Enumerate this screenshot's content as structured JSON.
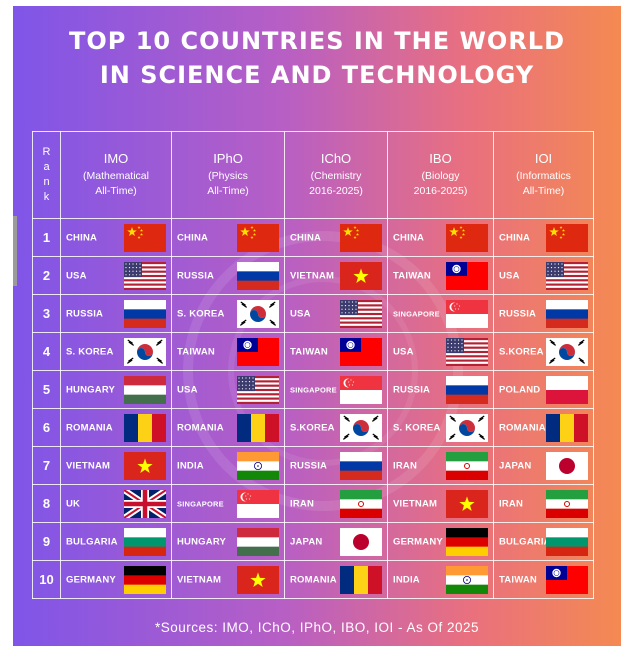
{
  "title_lines": [
    "TOP 10 COUNTRIES IN THE WORLD",
    "IN SCIENCE AND TECHNOLOGY"
  ],
  "rank_header": [
    "R",
    "a",
    "n",
    "k"
  ],
  "columns": [
    {
      "name": "IMO",
      "sub": [
        "(Mathematical",
        "All-Time)"
      ]
    },
    {
      "name": "IPhO",
      "sub": [
        "(Physics",
        "All-Time)"
      ]
    },
    {
      "name": "IChO",
      "sub": [
        "(Chemistry",
        "2016-2025)"
      ]
    },
    {
      "name": "IBO",
      "sub": [
        "(Biology",
        "2016-2025)"
      ]
    },
    {
      "name": "IOI",
      "sub": [
        "(Informatics",
        "All-Time)"
      ]
    }
  ],
  "rows": [
    {
      "rank": "1",
      "cells": [
        {
          "name": "CHINA",
          "flag": "china"
        },
        {
          "name": "CHINA",
          "flag": "china"
        },
        {
          "name": "CHINA",
          "flag": "china"
        },
        {
          "name": "CHINA",
          "flag": "china"
        },
        {
          "name": "CHINA",
          "flag": "china"
        }
      ]
    },
    {
      "rank": "2",
      "cells": [
        {
          "name": "USA",
          "flag": "usa"
        },
        {
          "name": "RUSSIA",
          "flag": "russia"
        },
        {
          "name": "VIETNAM",
          "flag": "vietnam"
        },
        {
          "name": "TAIWAN",
          "flag": "taiwan"
        },
        {
          "name": "USA",
          "flag": "usa"
        }
      ]
    },
    {
      "rank": "3",
      "cells": [
        {
          "name": "RUSSIA",
          "flag": "russia"
        },
        {
          "name": "S. KOREA",
          "flag": "korea"
        },
        {
          "name": "USA",
          "flag": "usa"
        },
        {
          "name": "SINGAPORE",
          "flag": "singapore"
        },
        {
          "name": "RUSSIA",
          "flag": "russia"
        }
      ]
    },
    {
      "rank": "4",
      "cells": [
        {
          "name": "S. KOREA",
          "flag": "korea"
        },
        {
          "name": "TAIWAN",
          "flag": "taiwan"
        },
        {
          "name": "TAIWAN",
          "flag": "taiwan"
        },
        {
          "name": "USA",
          "flag": "usa"
        },
        {
          "name": "S.KOREA",
          "flag": "korea"
        }
      ]
    },
    {
      "rank": "5",
      "cells": [
        {
          "name": "HUNGARY",
          "flag": "hungary"
        },
        {
          "name": "USA",
          "flag": "usa"
        },
        {
          "name": "SINGAPORE",
          "flag": "singapore"
        },
        {
          "name": "RUSSIA",
          "flag": "russia"
        },
        {
          "name": "POLAND",
          "flag": "poland"
        }
      ]
    },
    {
      "rank": "6",
      "cells": [
        {
          "name": "ROMANIA",
          "flag": "romania"
        },
        {
          "name": "ROMANIA",
          "flag": "romania"
        },
        {
          "name": "S.KOREA",
          "flag": "korea"
        },
        {
          "name": "S. KOREA",
          "flag": "korea"
        },
        {
          "name": "ROMANIA",
          "flag": "romania"
        }
      ]
    },
    {
      "rank": "7",
      "cells": [
        {
          "name": "VIETNAM",
          "flag": "vietnam"
        },
        {
          "name": "INDIA",
          "flag": "india"
        },
        {
          "name": "RUSSIA",
          "flag": "russia"
        },
        {
          "name": "IRAN",
          "flag": "iran"
        },
        {
          "name": "JAPAN",
          "flag": "japan"
        }
      ]
    },
    {
      "rank": "8",
      "cells": [
        {
          "name": "UK",
          "flag": "uk"
        },
        {
          "name": "SINGAPORE",
          "flag": "singapore"
        },
        {
          "name": "IRAN",
          "flag": "iran"
        },
        {
          "name": "VIETNAM",
          "flag": "vietnam"
        },
        {
          "name": "IRAN",
          "flag": "iran"
        }
      ]
    },
    {
      "rank": "9",
      "cells": [
        {
          "name": "BULGARIA",
          "flag": "bulgaria"
        },
        {
          "name": "HUNGARY",
          "flag": "hungary"
        },
        {
          "name": "JAPAN",
          "flag": "japan"
        },
        {
          "name": "GERMANY",
          "flag": "germany"
        },
        {
          "name": "BULGARIA",
          "flag": "bulgaria"
        }
      ]
    },
    {
      "rank": "10",
      "cells": [
        {
          "name": "GERMANY",
          "flag": "germany"
        },
        {
          "name": "VIETNAM",
          "flag": "vietnam"
        },
        {
          "name": "ROMANIA",
          "flag": "romania"
        },
        {
          "name": "INDIA",
          "flag": "india"
        },
        {
          "name": "TAIWAN",
          "flag": "taiwan"
        }
      ]
    }
  ],
  "sources": "*Sources: IMO, IChO, IPhO, IBO, IOI - As Of 2025",
  "colors": {
    "gradient_start": "#7f55e8",
    "gradient_end": "#f48a52",
    "text": "#ffffff"
  }
}
